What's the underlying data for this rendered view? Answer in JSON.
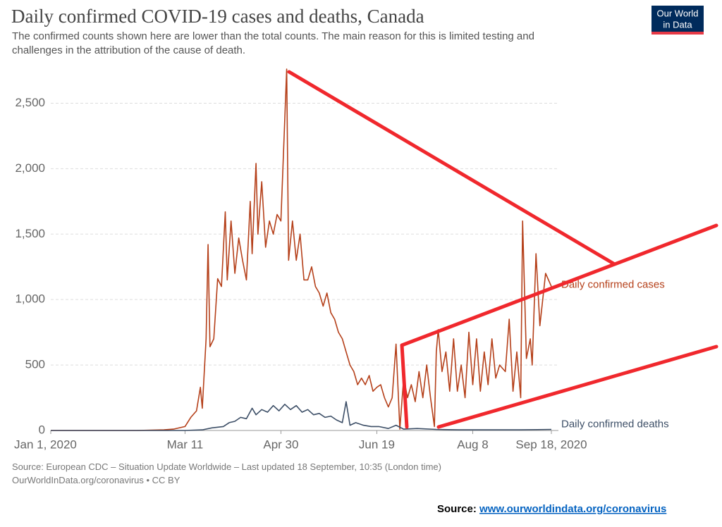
{
  "chart_data": {
    "type": "line",
    "title": "Daily confirmed COVID-19 cases and deaths, Canada",
    "subtitle": [
      "The confirmed counts shown here are lower than the total counts. The main reason for this is limited testing and",
      "challenges in the attribution of the cause of death."
    ],
    "source": [
      "Source: European CDC – Situation Update Worldwide – Last updated 18 September, 10:35 (London time)",
      "OurWorldInData.org/coronavirus • CC BY"
    ],
    "logo": [
      "Our World",
      "in Data"
    ],
    "footer": {
      "label": "Source:",
      "link": "www.ourworldindata.org/coronavirus"
    },
    "xlim": [
      "2020-01-01",
      "2020-09-18"
    ],
    "xticks": [
      {
        "value": "2020-01-01",
        "label": "Jan 1, 2020"
      },
      {
        "value": "2020-03-11",
        "label": "Mar 11"
      },
      {
        "value": "2020-04-30",
        "label": "Apr 30"
      },
      {
        "value": "2020-06-19",
        "label": "Jun 19"
      },
      {
        "value": "2020-08-08",
        "label": "Aug 8"
      },
      {
        "value": "2020-09-18",
        "label": "Sep 18, 2020"
      }
    ],
    "ylim": [
      0,
      2750
    ],
    "yticks": [
      0,
      500,
      {
        "value": 1000,
        "label": "1,000"
      },
      {
        "value": 1500,
        "label": "1,500"
      },
      {
        "value": 2000,
        "label": "2,000"
      },
      {
        "value": 2500,
        "label": "2,500"
      }
    ],
    "grid": true,
    "series": [
      {
        "name": "Daily confirmed cases",
        "color": "#b5401a",
        "x": [
          "2020-01-01",
          "2020-01-31",
          "2020-02-15",
          "2020-02-29",
          "2020-03-05",
          "2020-03-11",
          "2020-03-14",
          "2020-03-17",
          "2020-03-19",
          "2020-03-20",
          "2020-03-22",
          "2020-03-23",
          "2020-03-24",
          "2020-03-26",
          "2020-03-28",
          "2020-03-30",
          "2020-04-01",
          "2020-04-02",
          "2020-04-04",
          "2020-04-06",
          "2020-04-08",
          "2020-04-10",
          "2020-04-12",
          "2020-04-14",
          "2020-04-15",
          "2020-04-17",
          "2020-04-18",
          "2020-04-20",
          "2020-04-22",
          "2020-04-24",
          "2020-04-26",
          "2020-04-28",
          "2020-04-30",
          "2020-05-03",
          "2020-05-04",
          "2020-05-06",
          "2020-05-08",
          "2020-05-10",
          "2020-05-12",
          "2020-05-14",
          "2020-05-16",
          "2020-05-18",
          "2020-05-20",
          "2020-05-22",
          "2020-05-24",
          "2020-05-26",
          "2020-05-28",
          "2020-05-30",
          "2020-06-01",
          "2020-06-03",
          "2020-06-05",
          "2020-06-07",
          "2020-06-09",
          "2020-06-11",
          "2020-06-13",
          "2020-06-15",
          "2020-06-17",
          "2020-06-19",
          "2020-06-21",
          "2020-06-23",
          "2020-06-25",
          "2020-06-27",
          "2020-06-29",
          "2020-07-01",
          "2020-07-03",
          "2020-07-05",
          "2020-07-07",
          "2020-07-09",
          "2020-07-11",
          "2020-07-13",
          "2020-07-15",
          "2020-07-17",
          "2020-07-19",
          "2020-07-20",
          "2020-07-21",
          "2020-07-23",
          "2020-07-25",
          "2020-07-27",
          "2020-07-29",
          "2020-07-31",
          "2020-08-02",
          "2020-08-04",
          "2020-08-06",
          "2020-08-08",
          "2020-08-10",
          "2020-08-12",
          "2020-08-14",
          "2020-08-16",
          "2020-08-18",
          "2020-08-20",
          "2020-08-22",
          "2020-08-25",
          "2020-08-27",
          "2020-08-29",
          "2020-08-31",
          "2020-09-02",
          "2020-09-03",
          "2020-09-05",
          "2020-09-07",
          "2020-09-08",
          "2020-09-10",
          "2020-09-12",
          "2020-09-15",
          "2020-09-18"
        ],
        "values": [
          0,
          0,
          0,
          5,
          10,
          30,
          100,
          150,
          330,
          170,
          700,
          1420,
          640,
          700,
          1160,
          1100,
          1670,
          1150,
          1600,
          1200,
          1470,
          1300,
          1150,
          1750,
          1350,
          2040,
          1500,
          1900,
          1400,
          1600,
          1500,
          1650,
          1600,
          2760,
          1300,
          1600,
          1300,
          1500,
          1150,
          1150,
          1250,
          1100,
          1050,
          950,
          1050,
          900,
          850,
          750,
          700,
          600,
          500,
          450,
          350,
          400,
          350,
          420,
          300,
          330,
          350,
          250,
          180,
          250,
          660,
          10,
          400,
          250,
          350,
          220,
          450,
          250,
          500,
          250,
          30,
          600,
          770,
          450,
          600,
          300,
          700,
          300,
          500,
          250,
          750,
          350,
          700,
          300,
          600,
          350,
          700,
          400,
          500,
          450,
          850,
          300,
          600,
          250,
          1600,
          550,
          700,
          500,
          1350,
          800,
          1200,
          1100
        ]
      },
      {
        "name": "Daily confirmed deaths",
        "color": "#3c4e66",
        "x": [
          "2020-01-01",
          "2020-03-11",
          "2020-03-20",
          "2020-03-25",
          "2020-03-31",
          "2020-04-03",
          "2020-04-06",
          "2020-04-09",
          "2020-04-12",
          "2020-04-15",
          "2020-04-17",
          "2020-04-20",
          "2020-04-23",
          "2020-04-26",
          "2020-04-29",
          "2020-05-02",
          "2020-05-05",
          "2020-05-08",
          "2020-05-11",
          "2020-05-14",
          "2020-05-17",
          "2020-05-20",
          "2020-05-23",
          "2020-05-26",
          "2020-05-29",
          "2020-06-01",
          "2020-06-03",
          "2020-06-05",
          "2020-06-08",
          "2020-06-12",
          "2020-06-16",
          "2020-06-20",
          "2020-06-25",
          "2020-06-29",
          "2020-07-03",
          "2020-07-10",
          "2020-07-20",
          "2020-08-01",
          "2020-08-15",
          "2020-09-01",
          "2020-09-18"
        ],
        "values": [
          0,
          0,
          5,
          20,
          30,
          60,
          70,
          100,
          90,
          170,
          120,
          160,
          140,
          190,
          150,
          200,
          160,
          190,
          140,
          160,
          120,
          130,
          100,
          110,
          80,
          60,
          220,
          40,
          60,
          40,
          30,
          30,
          15,
          40,
          10,
          15,
          8,
          5,
          5,
          5,
          8
        ]
      }
    ]
  }
}
